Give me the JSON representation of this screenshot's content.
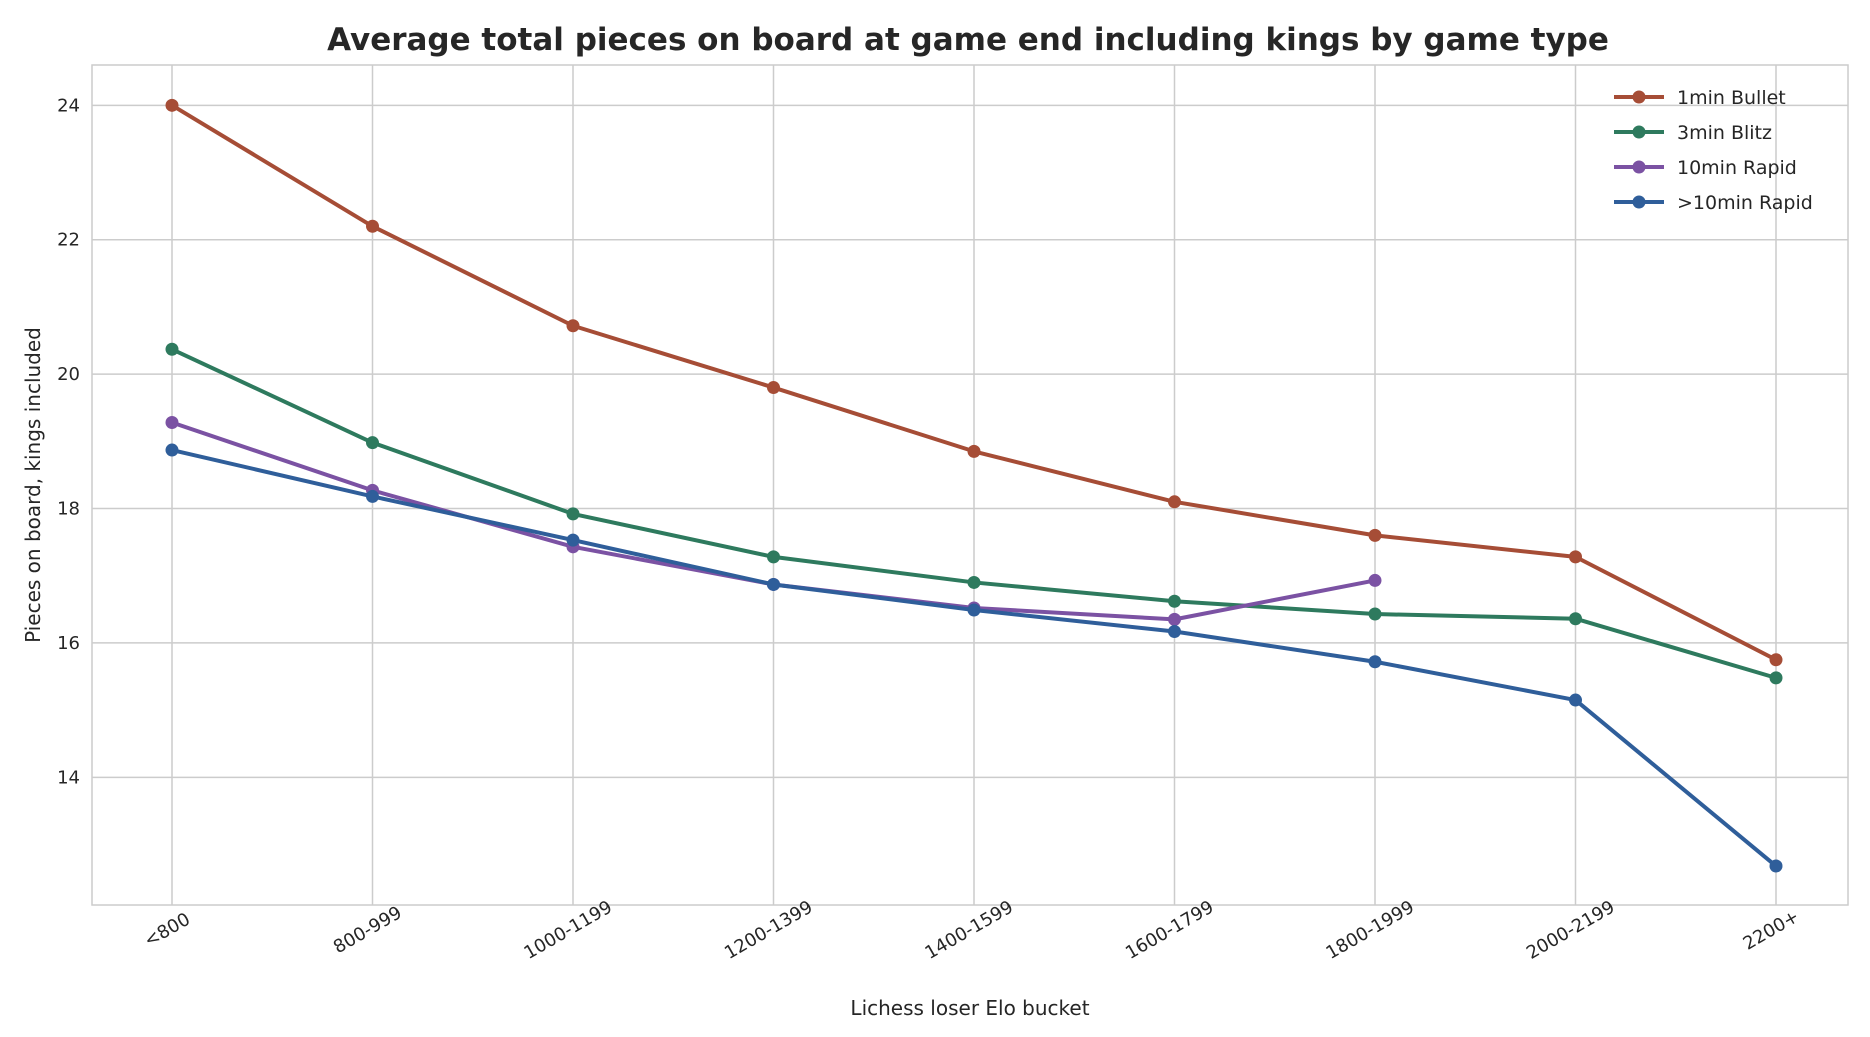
{
  "chart_data": {
    "type": "line",
    "title": "Average total pieces on board at game end including kings by game type",
    "xlabel": "Lichess loser Elo bucket",
    "ylabel": "Pieces on board, kings included",
    "categories": [
      "<800",
      "800-999",
      "1000-1199",
      "1200-1399",
      "1400-1599",
      "1600-1799",
      "1800-1999",
      "2000-2199",
      "2200+"
    ],
    "ylim": [
      12.1,
      24.6
    ],
    "yticks": [
      "14",
      "16",
      "18",
      "20",
      "22",
      "24"
    ],
    "ytick_values": [
      14,
      16,
      18,
      20,
      22,
      24
    ],
    "grid": true,
    "legend_position": "top-right",
    "series": [
      {
        "name": "1min Bullet",
        "color": "#a64d36",
        "values": [
          24.0,
          22.2,
          20.72,
          19.8,
          18.85,
          18.1,
          17.6,
          17.28,
          15.75
        ]
      },
      {
        "name": "3min Blitz",
        "color": "#2e7a5e",
        "values": [
          20.37,
          18.98,
          17.92,
          17.28,
          16.9,
          16.62,
          16.43,
          16.36,
          15.48
        ]
      },
      {
        "name": "10min Rapid",
        "color": "#7b52a3",
        "values": [
          19.28,
          18.27,
          17.43,
          16.87,
          16.52,
          16.35,
          16.93,
          null,
          null
        ]
      },
      {
        "name": ">10min Rapid",
        "color": "#2f5e9a",
        "values": [
          18.87,
          18.18,
          17.53,
          16.87,
          16.49,
          16.17,
          15.72,
          15.15,
          12.68
        ]
      }
    ]
  }
}
